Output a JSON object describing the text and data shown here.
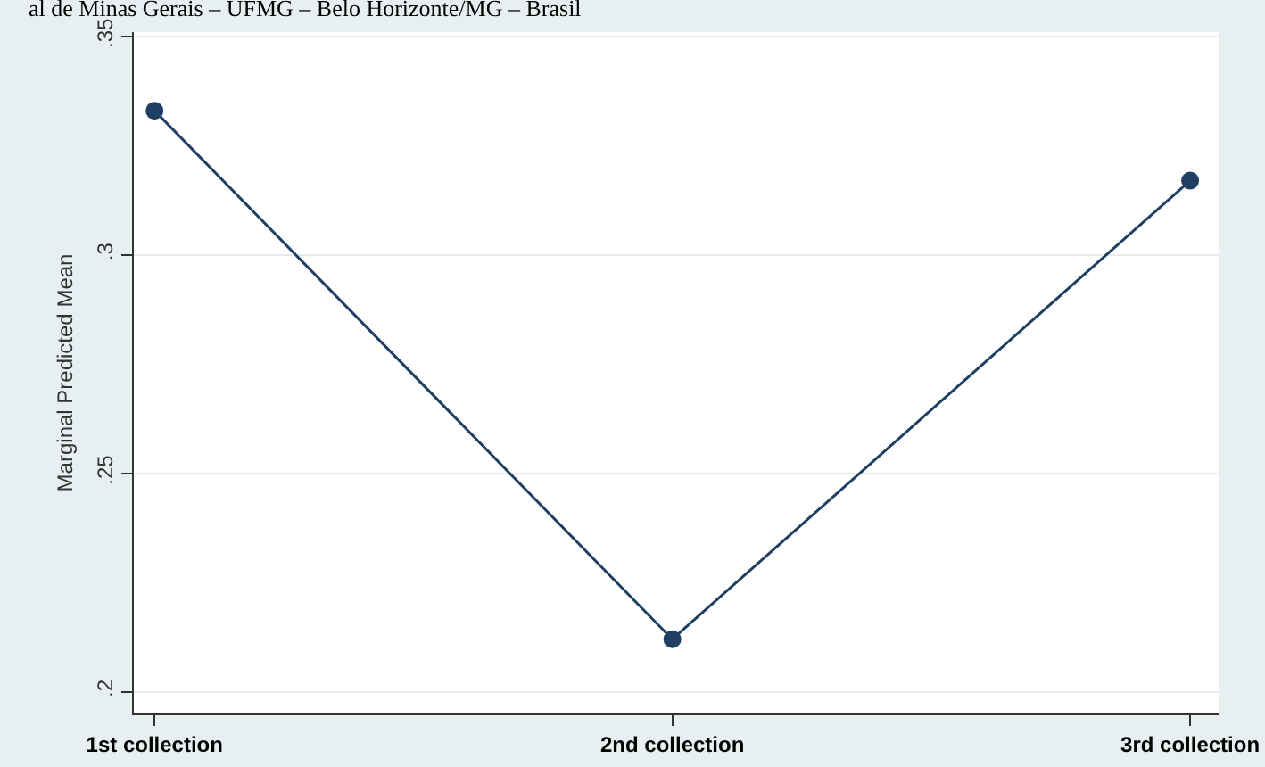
{
  "chart_data": {
    "type": "line",
    "ylabel": "Marginal Predicted Mean",
    "annotations": [
      "al de Minas Gerais – UFMG – Belo Horizonte/MG – Brasil"
    ],
    "categories": [
      "1st collection",
      "2nd collection",
      "3rd collection"
    ],
    "series": [
      {
        "color": "#1f3f63",
        "values": [
          0.333,
          0.212,
          0.317
        ]
      }
    ],
    "ylim": [
      0.195,
      0.351
    ],
    "yticks": [
      {
        "value": 0.2,
        "label": ".2"
      },
      {
        "value": 0.25,
        "label": ".25"
      },
      {
        "value": 0.3,
        "label": ".3"
      },
      {
        "value": 0.35,
        "label": ".35"
      }
    ],
    "grid": "y",
    "marker": "circle",
    "line_style": "solid",
    "legend": false
  }
}
